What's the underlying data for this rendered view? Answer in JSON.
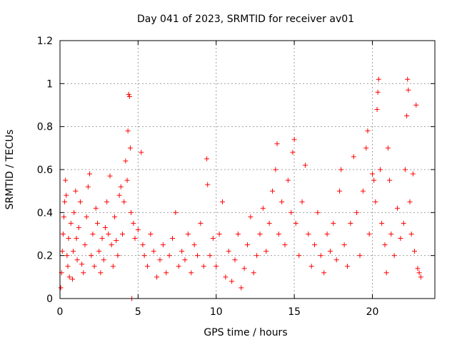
{
  "chart_data": {
    "type": "scatter",
    "title": "Day 041 of 2023, SRMTID for receiver av01",
    "xlabel": "GPS time / hours",
    "ylabel": "SRMTID / TECUs",
    "xlim": [
      0,
      24
    ],
    "ylim": [
      0,
      1.2
    ],
    "x_ticks": [
      0,
      5,
      10,
      15,
      20
    ],
    "x_tick_labels": [
      "0",
      "5",
      "10",
      "15",
      "20"
    ],
    "y_ticks": [
      0,
      0.2,
      0.4,
      0.6,
      0.8,
      1,
      1.2
    ],
    "y_tick_labels": [
      "0",
      "0.2",
      "0.4",
      "0.6",
      "0.8",
      "1",
      "1.2"
    ],
    "grid": true,
    "marker": "+",
    "series": [
      {
        "name": "av01",
        "color": "#ff0000",
        "points": [
          [
            0.05,
            0.05
          ],
          [
            0.1,
            0.12
          ],
          [
            0.15,
            0.22
          ],
          [
            0.2,
            0.3
          ],
          [
            0.25,
            0.38
          ],
          [
            0.3,
            0.45
          ],
          [
            0.35,
            0.55
          ],
          [
            0.4,
            0.48
          ],
          [
            0.45,
            0.2
          ],
          [
            0.5,
            0.15
          ],
          [
            0.55,
            0.28
          ],
          [
            0.6,
            0.1
          ],
          [
            0.7,
            0.35
          ],
          [
            0.8,
            0.09
          ],
          [
            0.85,
            0.22
          ],
          [
            0.9,
            0.4
          ],
          [
            1.0,
            0.5
          ],
          [
            1.05,
            0.28
          ],
          [
            1.1,
            0.18
          ],
          [
            1.2,
            0.33
          ],
          [
            1.3,
            0.45
          ],
          [
            1.4,
            0.16
          ],
          [
            1.5,
            0.12
          ],
          [
            1.6,
            0.25
          ],
          [
            1.7,
            0.38
          ],
          [
            1.8,
            0.52
          ],
          [
            1.9,
            0.58
          ],
          [
            2.0,
            0.2
          ],
          [
            2.1,
            0.3
          ],
          [
            2.2,
            0.15
          ],
          [
            2.3,
            0.42
          ],
          [
            2.4,
            0.35
          ],
          [
            2.5,
            0.22
          ],
          [
            2.6,
            0.12
          ],
          [
            2.7,
            0.28
          ],
          [
            2.8,
            0.18
          ],
          [
            2.9,
            0.33
          ],
          [
            3.0,
            0.45
          ],
          [
            3.1,
            0.3
          ],
          [
            3.2,
            0.57
          ],
          [
            3.3,
            0.25
          ],
          [
            3.4,
            0.15
          ],
          [
            3.5,
            0.38
          ],
          [
            3.6,
            0.27
          ],
          [
            3.7,
            0.2
          ],
          [
            3.8,
            0.48
          ],
          [
            3.9,
            0.52
          ],
          [
            4.0,
            0.3
          ],
          [
            4.1,
            0.45
          ],
          [
            4.2,
            0.64
          ],
          [
            4.3,
            0.55
          ],
          [
            4.35,
            0.78
          ],
          [
            4.4,
            0.95
          ],
          [
            4.45,
            0.94
          ],
          [
            4.5,
            0.7
          ],
          [
            4.55,
            0.4
          ],
          [
            4.6,
            0.0
          ],
          [
            4.7,
            0.35
          ],
          [
            4.8,
            0.28
          ],
          [
            5.0,
            0.32
          ],
          [
            5.2,
            0.68
          ],
          [
            5.3,
            0.25
          ],
          [
            5.4,
            0.2
          ],
          [
            5.6,
            0.15
          ],
          [
            5.8,
            0.3
          ],
          [
            6.0,
            0.22
          ],
          [
            6.2,
            0.1
          ],
          [
            6.4,
            0.18
          ],
          [
            6.6,
            0.25
          ],
          [
            6.8,
            0.12
          ],
          [
            7.0,
            0.2
          ],
          [
            7.2,
            0.28
          ],
          [
            7.4,
            0.4
          ],
          [
            7.6,
            0.15
          ],
          [
            7.8,
            0.22
          ],
          [
            8.0,
            0.18
          ],
          [
            8.2,
            0.3
          ],
          [
            8.4,
            0.12
          ],
          [
            8.6,
            0.25
          ],
          [
            8.8,
            0.2
          ],
          [
            9.0,
            0.35
          ],
          [
            9.2,
            0.15
          ],
          [
            9.4,
            0.65
          ],
          [
            9.45,
            0.53
          ],
          [
            9.6,
            0.2
          ],
          [
            9.8,
            0.28
          ],
          [
            10.0,
            0.15
          ],
          [
            10.2,
            0.3
          ],
          [
            10.4,
            0.45
          ],
          [
            10.6,
            0.1
          ],
          [
            10.8,
            0.22
          ],
          [
            11.0,
            0.08
          ],
          [
            11.2,
            0.18
          ],
          [
            11.4,
            0.3
          ],
          [
            11.6,
            0.05
          ],
          [
            11.8,
            0.14
          ],
          [
            12.0,
            0.25
          ],
          [
            12.2,
            0.38
          ],
          [
            12.4,
            0.12
          ],
          [
            12.6,
            0.2
          ],
          [
            12.8,
            0.3
          ],
          [
            13.0,
            0.42
          ],
          [
            13.2,
            0.22
          ],
          [
            13.4,
            0.35
          ],
          [
            13.6,
            0.5
          ],
          [
            13.8,
            0.6
          ],
          [
            13.9,
            0.72
          ],
          [
            14.0,
            0.3
          ],
          [
            14.2,
            0.45
          ],
          [
            14.4,
            0.25
          ],
          [
            14.6,
            0.55
          ],
          [
            14.8,
            0.4
          ],
          [
            14.9,
            0.68
          ],
          [
            15.0,
            0.74
          ],
          [
            15.1,
            0.35
          ],
          [
            15.3,
            0.2
          ],
          [
            15.5,
            0.45
          ],
          [
            15.7,
            0.62
          ],
          [
            15.9,
            0.3
          ],
          [
            16.1,
            0.15
          ],
          [
            16.3,
            0.25
          ],
          [
            16.5,
            0.4
          ],
          [
            16.7,
            0.2
          ],
          [
            16.9,
            0.12
          ],
          [
            17.1,
            0.3
          ],
          [
            17.3,
            0.22
          ],
          [
            17.5,
            0.35
          ],
          [
            17.7,
            0.18
          ],
          [
            17.9,
            0.5
          ],
          [
            18.0,
            0.6
          ],
          [
            18.2,
            0.25
          ],
          [
            18.4,
            0.15
          ],
          [
            18.6,
            0.35
          ],
          [
            18.8,
            0.66
          ],
          [
            19.0,
            0.4
          ],
          [
            19.2,
            0.2
          ],
          [
            19.4,
            0.5
          ],
          [
            19.6,
            0.7
          ],
          [
            19.7,
            0.78
          ],
          [
            19.8,
            0.3
          ],
          [
            20.0,
            0.58
          ],
          [
            20.1,
            0.55
          ],
          [
            20.2,
            0.45
          ],
          [
            20.3,
            0.88
          ],
          [
            20.35,
            0.96
          ],
          [
            20.4,
            1.02
          ],
          [
            20.5,
            0.6
          ],
          [
            20.6,
            0.35
          ],
          [
            20.8,
            0.25
          ],
          [
            20.9,
            0.12
          ],
          [
            21.0,
            0.7
          ],
          [
            21.1,
            0.55
          ],
          [
            21.2,
            0.3
          ],
          [
            21.4,
            0.2
          ],
          [
            21.6,
            0.42
          ],
          [
            21.8,
            0.28
          ],
          [
            22.0,
            0.35
          ],
          [
            22.1,
            0.6
          ],
          [
            22.2,
            0.85
          ],
          [
            22.25,
            1.02
          ],
          [
            22.3,
            0.97
          ],
          [
            22.4,
            0.45
          ],
          [
            22.5,
            0.3
          ],
          [
            22.6,
            0.58
          ],
          [
            22.7,
            0.22
          ],
          [
            22.8,
            0.9
          ],
          [
            22.9,
            0.14
          ],
          [
            23.0,
            0.12
          ],
          [
            23.1,
            0.1
          ]
        ]
      }
    ]
  }
}
